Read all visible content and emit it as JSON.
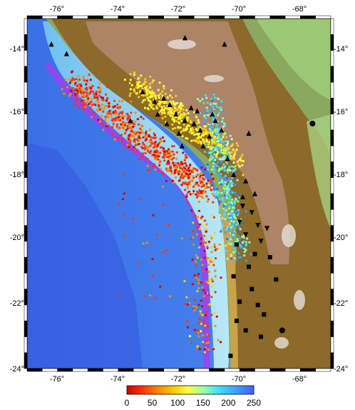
{
  "map": {
    "longitude_ticks": [
      "-76°",
      "-74°",
      "-72°",
      "-70°",
      "-68°"
    ],
    "latitude_ticks": [
      "-14°",
      "-16°",
      "-18°",
      "-20°",
      "-22°",
      "-24°"
    ],
    "extent": {
      "lon_min": -77,
      "lon_max": -67,
      "lat_min": -24,
      "lat_max": -13
    }
  },
  "colorbar": {
    "ticks": [
      "0",
      "50",
      "100",
      "150",
      "200",
      "250"
    ],
    "range": [
      0,
      250
    ],
    "colors": [
      "#d00000",
      "#ff3300",
      "#ff8800",
      "#ffd000",
      "#ffff40",
      "#a0ffa0",
      "#40e0ff",
      "#40a0ff",
      "#4060ff"
    ]
  },
  "legend_symbols": {
    "triangle": "volcano-marker",
    "inverted_triangle": "station-marker",
    "square": "site-marker",
    "circle": "city-marker"
  }
}
